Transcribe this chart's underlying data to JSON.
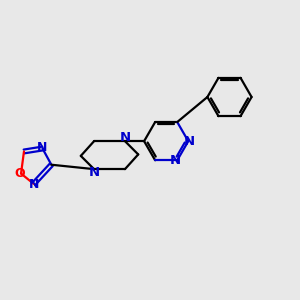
{
  "bg_color": "#e8e8e8",
  "bond_color": "#000000",
  "nitrogen_color": "#0000cc",
  "oxygen_color": "#ff0000",
  "line_width": 1.6,
  "font_size": 9.5,
  "fig_size": [
    3.0,
    3.0
  ],
  "dpi": 100,
  "xlim": [
    0,
    10
  ],
  "ylim": [
    0,
    10
  ]
}
